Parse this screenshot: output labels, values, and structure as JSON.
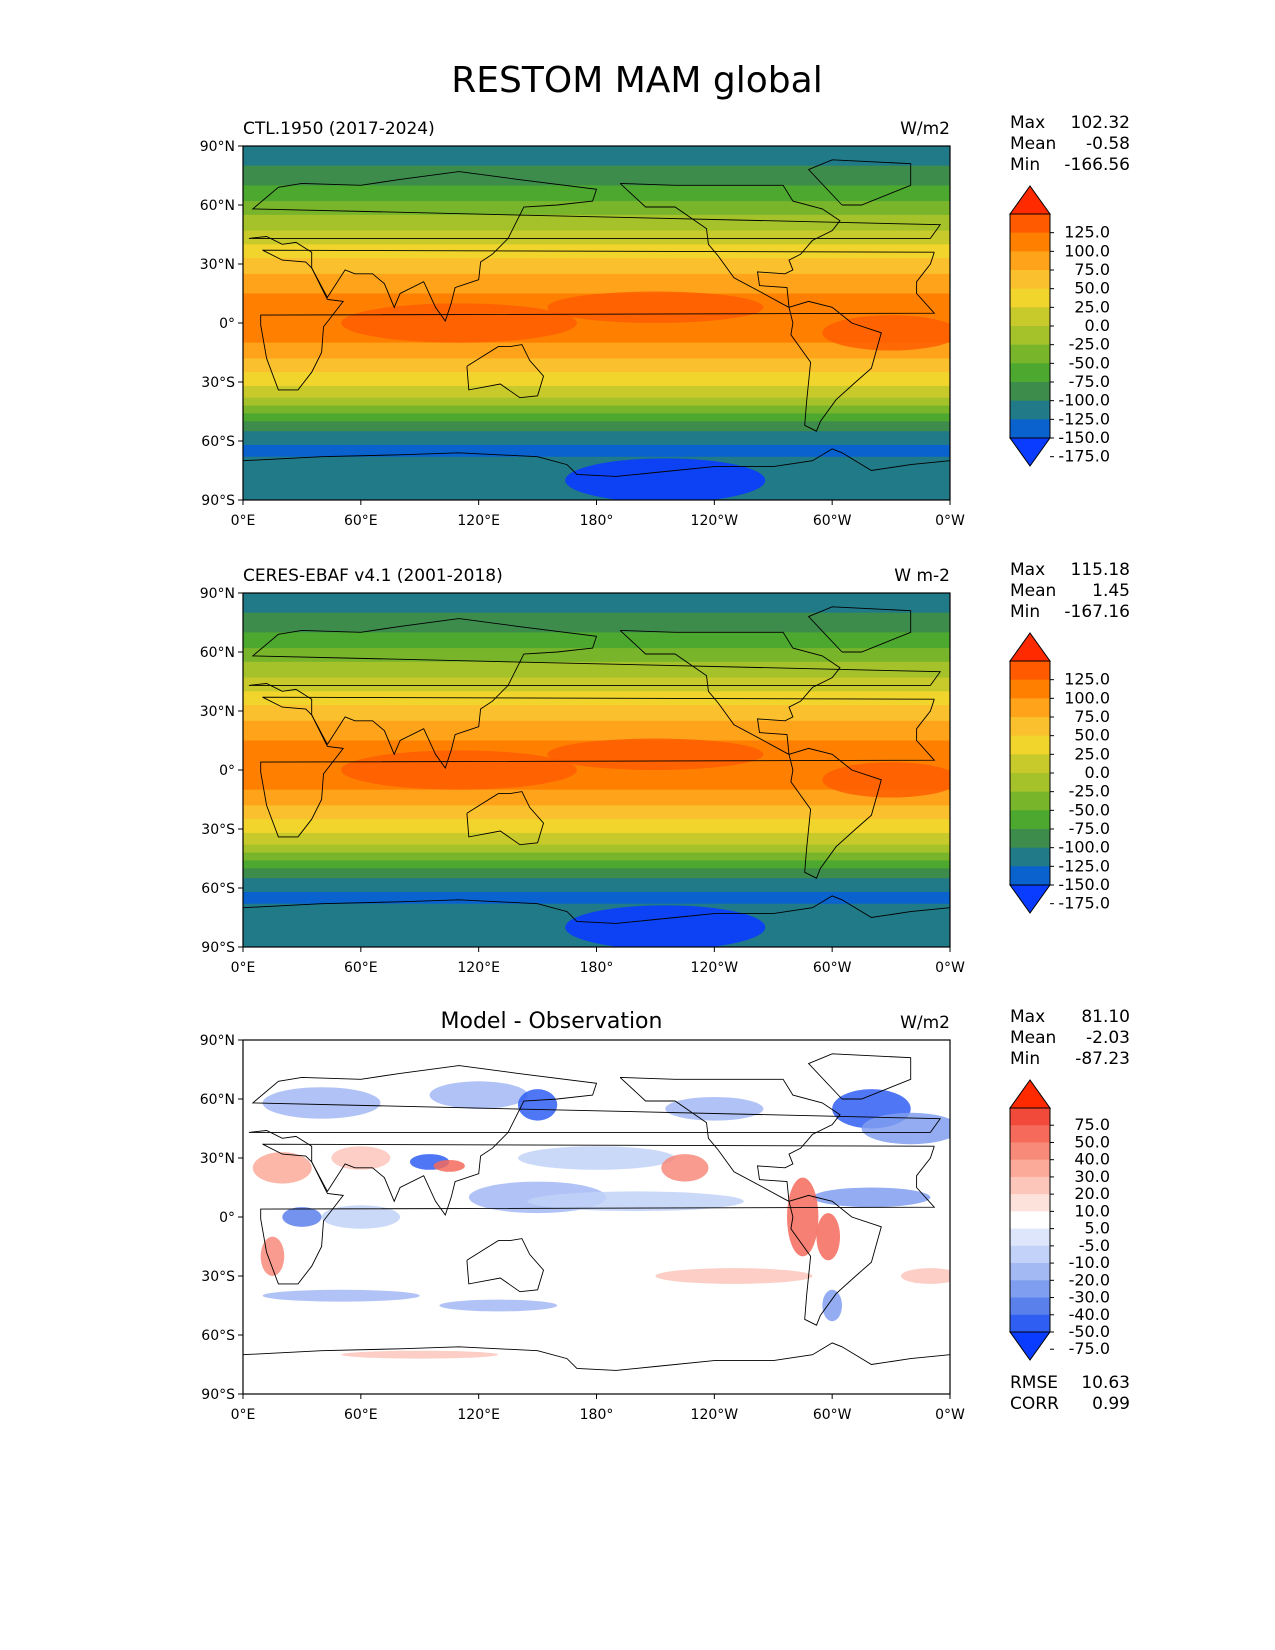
{
  "figure": {
    "title": "RESTOM MAM global"
  },
  "axes": {
    "lat_ticks": [
      "90°N",
      "60°N",
      "30°N",
      "0°",
      "30°S",
      "60°S",
      "90°S"
    ],
    "lon_ticks": [
      "0°E",
      "60°E",
      "120°E",
      "180°",
      "120°W",
      "60°W",
      "0°W"
    ]
  },
  "panels": [
    {
      "title": "CTL.1950 (2017-2024)",
      "title_size": "normal",
      "units": "W/m2",
      "stats": [
        {
          "label": "Max",
          "value": "102.32"
        },
        {
          "label": "Mean",
          "value": "-0.58"
        },
        {
          "label": "Min",
          "value": "-166.56"
        }
      ],
      "colorbar": {
        "levels": [
          "125.0",
          "100.0",
          "75.0",
          "50.0",
          "25.0",
          "0.0",
          "-25.0",
          "-50.0",
          "-75.0",
          "-100.0",
          "-125.0",
          "-150.0",
          "-175.0"
        ],
        "colors": [
          "#ff2a00",
          "#ff5a00",
          "#ff8000",
          "#ffa31a",
          "#fbc02d",
          "#f1d52c",
          "#c8c92a",
          "#a5c22a",
          "#78b52a",
          "#4ca82e",
          "#3d8c4c",
          "#217a87",
          "#0a62cf",
          "#0a3cff"
        ]
      },
      "map_style": "absolute",
      "bottom_stats": []
    },
    {
      "title": "CERES-EBAF v4.1 (2001-2018)",
      "title_size": "normal",
      "units": "W m-2",
      "stats": [
        {
          "label": "Max",
          "value": "115.18"
        },
        {
          "label": "Mean",
          "value": "1.45"
        },
        {
          "label": "Min",
          "value": "-167.16"
        }
      ],
      "colorbar": {
        "levels": [
          "125.0",
          "100.0",
          "75.0",
          "50.0",
          "25.0",
          "0.0",
          "-25.0",
          "-50.0",
          "-75.0",
          "-100.0",
          "-125.0",
          "-150.0",
          "-175.0"
        ],
        "colors": [
          "#ff2a00",
          "#ff5a00",
          "#ff8000",
          "#ffa31a",
          "#fbc02d",
          "#f1d52c",
          "#c8c92a",
          "#a5c22a",
          "#78b52a",
          "#4ca82e",
          "#3d8c4c",
          "#217a87",
          "#0a62cf",
          "#0a3cff"
        ]
      },
      "map_style": "absolute",
      "bottom_stats": []
    },
    {
      "title": "Model - Observation",
      "title_size": "large",
      "units": "W/m2",
      "stats": [
        {
          "label": "Max",
          "value": "81.10"
        },
        {
          "label": "Mean",
          "value": "-2.03"
        },
        {
          "label": "Min",
          "value": "-87.23"
        }
      ],
      "colorbar": {
        "levels": [
          "75.0",
          "50.0",
          "40.0",
          "30.0",
          "20.0",
          "10.0",
          "5.0",
          "-5.0",
          "-10.0",
          "-20.0",
          "-30.0",
          "-40.0",
          "-50.0",
          "-75.0"
        ],
        "colors": [
          "#ff2a00",
          "#f24a3a",
          "#f56a5a",
          "#f88a7a",
          "#fbaa9a",
          "#fcc6bb",
          "#fde2dc",
          "#ffffff",
          "#dde6fb",
          "#c2d2f8",
          "#a3b9f4",
          "#809ef0",
          "#5a80ec",
          "#2f5ef3",
          "#0a3cff"
        ]
      },
      "map_style": "diff",
      "bottom_stats": [
        {
          "label": "RMSE",
          "value": "10.63"
        },
        {
          "label": "CORR",
          "value": "0.99"
        }
      ]
    }
  ]
}
